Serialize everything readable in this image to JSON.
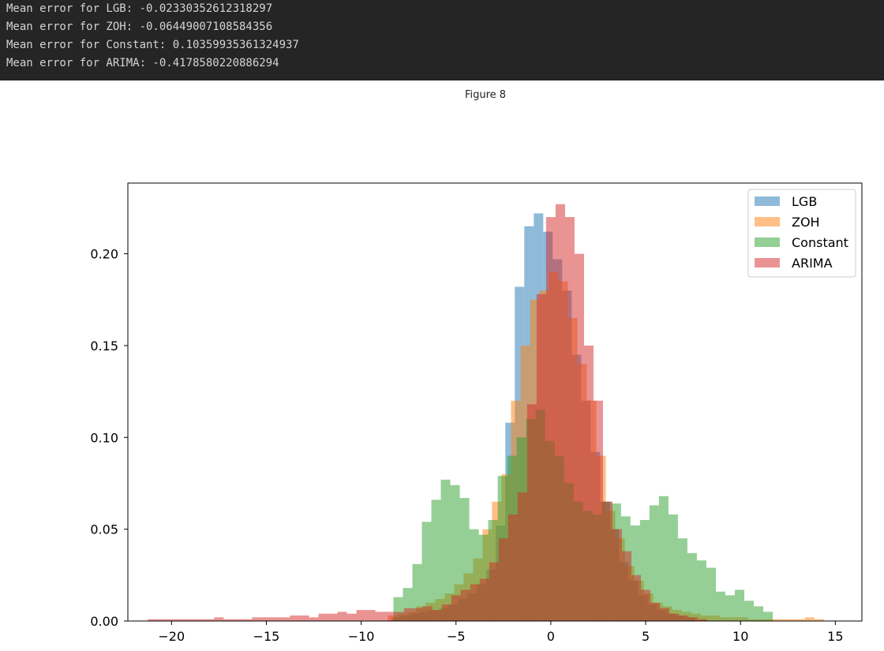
{
  "console": {
    "lines": [
      "Mean error for LGB: -0.02330352612318297",
      "Mean error for ZOH: -0.06449007108584356",
      "Mean error for Constant: 0.10359935361324937",
      "Mean error for ARIMA: -0.4178580220886294"
    ]
  },
  "figure": {
    "title": "Figure 8"
  },
  "chart_data": {
    "type": "histogram",
    "title": "",
    "xlabel": "",
    "ylabel": "",
    "xlim": [
      -22.3,
      16.4
    ],
    "ylim": [
      0,
      0.2385
    ],
    "x_ticks": [
      -20,
      -15,
      -10,
      -5,
      0,
      5,
      10,
      15
    ],
    "x_tick_labels": [
      "−20",
      "−15",
      "−10",
      "−5",
      "0",
      "5",
      "10",
      "15"
    ],
    "y_ticks": [
      0.0,
      0.05,
      0.1,
      0.15,
      0.2
    ],
    "y_tick_labels": [
      "0.00",
      "0.05",
      "0.10",
      "0.15",
      "0.20"
    ],
    "grid": false,
    "legend_position": "top-right",
    "alpha": 0.5,
    "series": [
      {
        "name": "LGB",
        "color": "#1f77b4",
        "bin_edges": [
          -8.4,
          -7.9,
          -7.4,
          -6.9,
          -6.4,
          -5.9,
          -5.4,
          -4.9,
          -4.4,
          -3.9,
          -3.4,
          -2.9,
          -2.4,
          -1.9,
          -1.4,
          -0.9,
          -0.4,
          0.1,
          0.6,
          1.1,
          1.6,
          2.1,
          2.6,
          3.1,
          3.6,
          4.1,
          4.6,
          5.1,
          5.6,
          6.1,
          6.6,
          7.1,
          7.6
        ],
        "values": [
          0.002,
          0.003,
          0.004,
          0.005,
          0.006,
          0.007,
          0.009,
          0.012,
          0.015,
          0.02,
          0.028,
          0.052,
          0.108,
          0.182,
          0.215,
          0.222,
          0.212,
          0.197,
          0.18,
          0.145,
          0.12,
          0.092,
          0.065,
          0.05,
          0.032,
          0.022,
          0.014,
          0.009,
          0.006,
          0.004,
          0.003,
          0.002
        ]
      },
      {
        "name": "ZOH",
        "color": "#ff7f0e",
        "bin_edges": [
          -8.6,
          -8.1,
          -7.6,
          -7.1,
          -6.6,
          -6.1,
          -5.6,
          -5.1,
          -4.6,
          -4.1,
          -3.6,
          -3.1,
          -2.6,
          -2.1,
          -1.6,
          -1.1,
          -0.6,
          -0.1,
          0.4,
          0.9,
          1.4,
          1.9,
          2.4,
          2.9,
          3.4,
          3.9,
          4.4,
          4.9,
          5.4,
          5.9,
          6.4,
          6.9,
          7.4,
          7.9,
          8.4,
          8.9,
          9.4,
          9.9,
          10.4,
          10.9,
          11.4,
          11.9,
          12.4,
          12.9,
          13.4,
          13.9,
          14.4
        ],
        "values": [
          0.003,
          0.004,
          0.005,
          0.008,
          0.01,
          0.012,
          0.015,
          0.02,
          0.026,
          0.034,
          0.05,
          0.065,
          0.08,
          0.12,
          0.15,
          0.175,
          0.18,
          0.19,
          0.185,
          0.165,
          0.14,
          0.12,
          0.09,
          0.06,
          0.045,
          0.03,
          0.022,
          0.015,
          0.01,
          0.008,
          0.006,
          0.005,
          0.004,
          0.003,
          0.003,
          0.002,
          0.002,
          0.002,
          0.001,
          0.001,
          0.001,
          0.001,
          0.001,
          0.001,
          0.002,
          0.001
        ]
      },
      {
        "name": "Constant",
        "color": "#2ca02c",
        "bin_edges": [
          -8.3,
          -7.8,
          -7.3,
          -6.8,
          -6.3,
          -5.8,
          -5.3,
          -4.8,
          -4.3,
          -3.8,
          -3.3,
          -2.8,
          -2.3,
          -1.8,
          -1.3,
          -0.8,
          -0.3,
          0.2,
          0.7,
          1.2,
          1.7,
          2.2,
          2.7,
          3.2,
          3.7,
          4.2,
          4.7,
          5.2,
          5.7,
          6.2,
          6.7,
          7.2,
          7.7,
          8.2,
          8.7,
          9.2,
          9.7,
          10.2,
          10.7,
          11.2,
          11.7
        ],
        "values": [
          0.013,
          0.018,
          0.031,
          0.054,
          0.066,
          0.077,
          0.074,
          0.067,
          0.05,
          0.047,
          0.055,
          0.079,
          0.09,
          0.1,
          0.11,
          0.115,
          0.098,
          0.09,
          0.075,
          0.065,
          0.06,
          0.058,
          0.065,
          0.064,
          0.057,
          0.052,
          0.055,
          0.063,
          0.068,
          0.058,
          0.045,
          0.037,
          0.033,
          0.029,
          0.016,
          0.014,
          0.017,
          0.011,
          0.008,
          0.005,
          0.002
        ]
      },
      {
        "name": "ARIMA",
        "color": "#d62728",
        "bin_edges": [
          -21.25,
          -20.75,
          -20.25,
          -19.75,
          -19.25,
          -18.75,
          -18.25,
          -17.75,
          -17.25,
          -16.75,
          -16.25,
          -15.75,
          -15.25,
          -14.75,
          -14.25,
          -13.75,
          -13.25,
          -12.75,
          -12.25,
          -11.75,
          -11.25,
          -10.75,
          -10.25,
          -9.75,
          -9.25,
          -8.75,
          -8.25,
          -7.75,
          -7.25,
          -6.75,
          -6.25,
          -5.75,
          -5.25,
          -4.75,
          -4.25,
          -3.75,
          -3.25,
          -2.75,
          -2.25,
          -1.75,
          -1.25,
          -0.75,
          -0.25,
          0.25,
          0.75,
          1.25,
          1.75,
          2.25,
          2.75,
          3.25,
          3.75,
          4.25,
          4.75,
          5.25,
          5.75,
          6.25,
          6.75,
          7.25,
          7.75,
          8.25
        ],
        "values": [
          0.001,
          0.001,
          0.001,
          0.001,
          0.001,
          0.001,
          0.001,
          0.002,
          0.001,
          0.001,
          0.001,
          0.002,
          0.002,
          0.002,
          0.002,
          0.003,
          0.003,
          0.002,
          0.004,
          0.004,
          0.005,
          0.004,
          0.006,
          0.006,
          0.005,
          0.005,
          0.005,
          0.007,
          0.007,
          0.008,
          0.006,
          0.009,
          0.014,
          0.017,
          0.02,
          0.023,
          0.032,
          0.045,
          0.058,
          0.07,
          0.118,
          0.178,
          0.22,
          0.227,
          0.22,
          0.2,
          0.15,
          0.12,
          0.065,
          0.05,
          0.038,
          0.025,
          0.017,
          0.01,
          0.007,
          0.004,
          0.003,
          0.002,
          0.001,
          0.001
        ]
      }
    ]
  }
}
